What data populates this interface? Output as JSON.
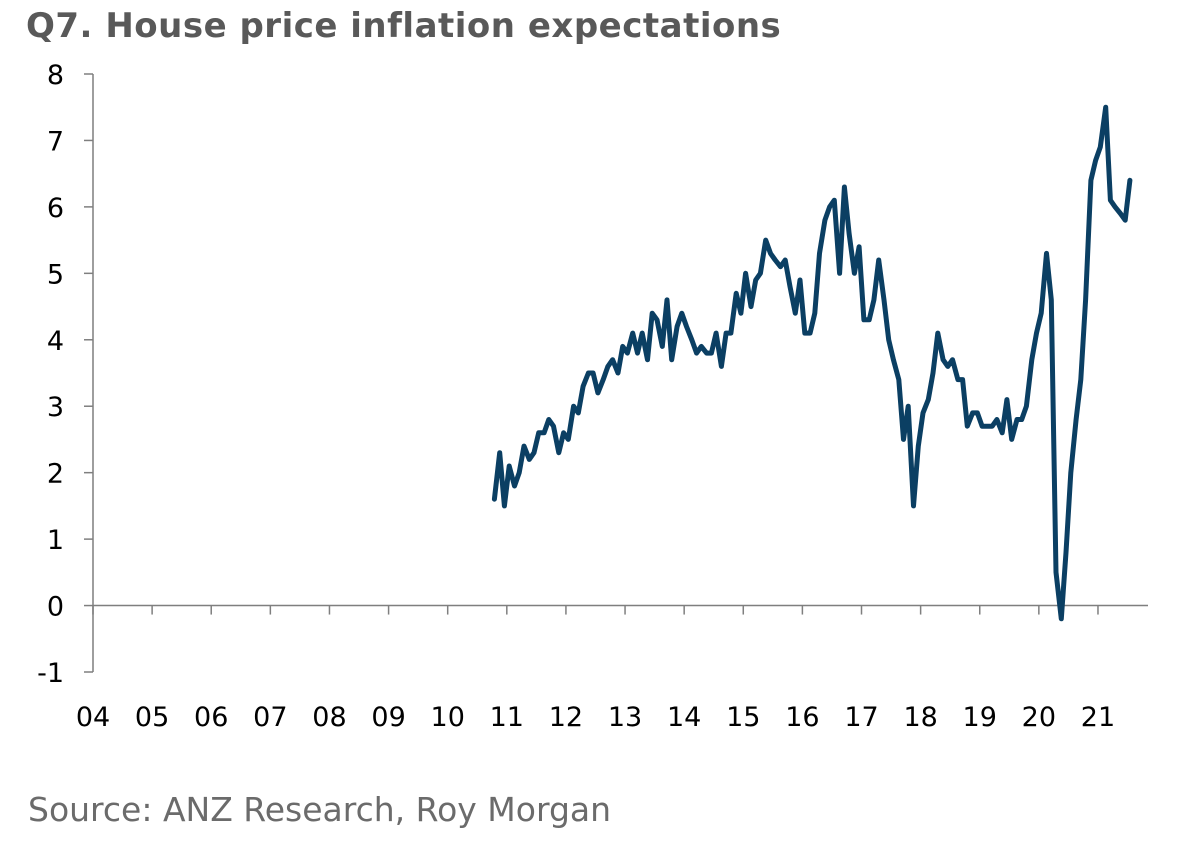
{
  "chart_data": {
    "type": "line",
    "title": "Q7. House price inflation expectations",
    "source": "Source: ANZ Research, Roy Morgan",
    "xlabel": "",
    "ylabel": "",
    "ylim": [
      -1,
      8
    ],
    "yticks": [
      8,
      7,
      6,
      5,
      4,
      3,
      2,
      1,
      0,
      -1
    ],
    "xlim": [
      2004,
      2022.1
    ],
    "xtick_labels": [
      "04",
      "05",
      "06",
      "07",
      "08",
      "09",
      "10",
      "11",
      "12",
      "13",
      "14",
      "15",
      "16",
      "17",
      "18",
      "19",
      "20",
      "21"
    ],
    "grid": false,
    "legend": "none",
    "line_color": "#0b3f63",
    "axis_color": "#7f7f7f",
    "series": [
      {
        "name": "House price inflation expectations",
        "x": [
          2010.79,
          2010.88,
          2010.96,
          2011.04,
          2011.13,
          2011.21,
          2011.29,
          2011.38,
          2011.46,
          2011.54,
          2011.63,
          2011.71,
          2011.79,
          2011.88,
          2011.96,
          2012.04,
          2012.13,
          2012.21,
          2012.29,
          2012.38,
          2012.46,
          2012.54,
          2012.63,
          2012.71,
          2012.79,
          2012.88,
          2012.96,
          2013.04,
          2013.13,
          2013.21,
          2013.29,
          2013.38,
          2013.46,
          2013.54,
          2013.63,
          2013.71,
          2013.79,
          2013.88,
          2013.96,
          2014.04,
          2014.13,
          2014.21,
          2014.29,
          2014.38,
          2014.46,
          2014.54,
          2014.63,
          2014.71,
          2014.79,
          2014.88,
          2014.96,
          2015.04,
          2015.13,
          2015.21,
          2015.29,
          2015.38,
          2015.46,
          2015.54,
          2015.63,
          2015.71,
          2015.79,
          2015.88,
          2015.96,
          2016.04,
          2016.13,
          2016.21,
          2016.29,
          2016.38,
          2016.46,
          2016.54,
          2016.63,
          2016.71,
          2016.79,
          2016.88,
          2016.96,
          2017.04,
          2017.13,
          2017.21,
          2017.29,
          2017.38,
          2017.46,
          2017.54,
          2017.63,
          2017.71,
          2017.79,
          2017.88,
          2017.96,
          2018.04,
          2018.13,
          2018.21,
          2018.29,
          2018.38,
          2018.46,
          2018.54,
          2018.63,
          2018.71,
          2018.79,
          2018.88,
          2018.96,
          2019.04,
          2019.13,
          2019.21,
          2019.29,
          2019.38,
          2019.46,
          2019.54,
          2019.63,
          2019.71,
          2019.79,
          2019.88,
          2019.96,
          2020.04,
          2020.13,
          2020.21,
          2020.29,
          2020.38,
          2020.46,
          2020.54,
          2020.63,
          2020.71,
          2020.79,
          2020.88,
          2020.96,
          2021.04,
          2021.13,
          2021.21,
          2021.29,
          2021.38,
          2021.46,
          2021.54
        ],
        "values": [
          1.6,
          2.3,
          1.5,
          2.1,
          1.8,
          2.0,
          2.4,
          2.2,
          2.3,
          2.6,
          2.6,
          2.8,
          2.7,
          2.3,
          2.6,
          2.5,
          3.0,
          2.9,
          3.3,
          3.5,
          3.5,
          3.2,
          3.4,
          3.6,
          3.7,
          3.5,
          3.9,
          3.8,
          4.1,
          3.8,
          4.1,
          3.7,
          4.4,
          4.3,
          3.9,
          4.6,
          3.7,
          4.2,
          4.4,
          4.2,
          4.0,
          3.8,
          3.9,
          3.8,
          3.8,
          4.1,
          3.6,
          4.1,
          4.1,
          4.7,
          4.4,
          5.0,
          4.5,
          4.9,
          5.0,
          5.5,
          5.3,
          5.2,
          5.1,
          5.2,
          4.8,
          4.4,
          4.9,
          4.1,
          4.1,
          4.4,
          5.3,
          5.8,
          6.0,
          6.1,
          5.0,
          6.3,
          5.6,
          5.0,
          5.4,
          4.3,
          4.3,
          4.6,
          5.2,
          4.6,
          4.0,
          3.7,
          3.4,
          2.5,
          3.0,
          1.5,
          2.4,
          2.9,
          3.1,
          3.5,
          4.1,
          3.7,
          3.6,
          3.7,
          3.4,
          3.4,
          2.7,
          2.9,
          2.9,
          2.7,
          2.7,
          2.7,
          2.8,
          2.6,
          3.1,
          2.5,
          2.8,
          2.8,
          3.0,
          3.7,
          4.1,
          4.4,
          5.3,
          4.6,
          0.5,
          -0.2,
          0.8,
          2.0,
          2.8,
          3.4,
          4.6,
          6.4,
          6.7,
          6.9,
          7.5,
          6.1,
          6.0,
          5.9,
          5.8,
          6.4
        ]
      }
    ]
  }
}
